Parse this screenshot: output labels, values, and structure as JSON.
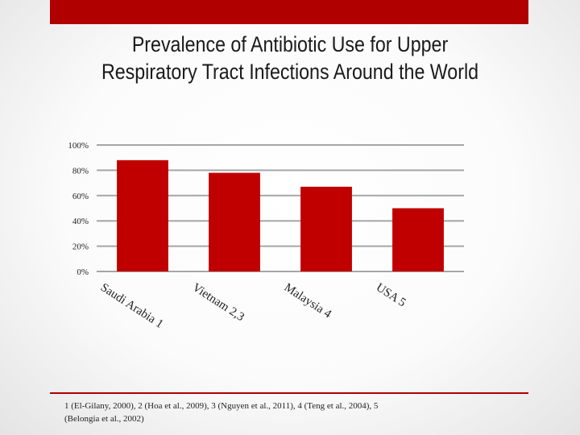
{
  "title_line1": "Prevalence of Antibiotic Use for Upper",
  "title_line2": "Respiratory Tract Infections Around the World",
  "footnote": "1 (El-Gilany, 2000), 2 (Hoa et al., 2009), 3 (Nguyen et al., 2011), 4 (Teng et al., 2004), 5 (Belongia et al., 2002)",
  "colors": {
    "accent": "#b00000",
    "bar": "#c00000",
    "grid": "#a6a6a6"
  },
  "chart_data": {
    "type": "bar",
    "title": "Prevalence of Antibiotic Use for Upper Respiratory Tract Infections Around the World",
    "categories": [
      "Saudi Arabia 1",
      "Vietnam 2,3",
      "Malaysia 4",
      "USA 5"
    ],
    "values": [
      88,
      78,
      67,
      50
    ],
    "ylim": [
      0,
      100
    ],
    "yticks": [
      0,
      20,
      40,
      60,
      80,
      100
    ],
    "ytick_labels": [
      "0%",
      "20%",
      "40%",
      "60%",
      "80%",
      "100%"
    ],
    "xlabel": "",
    "ylabel": "",
    "grid": true,
    "legend": "none"
  }
}
